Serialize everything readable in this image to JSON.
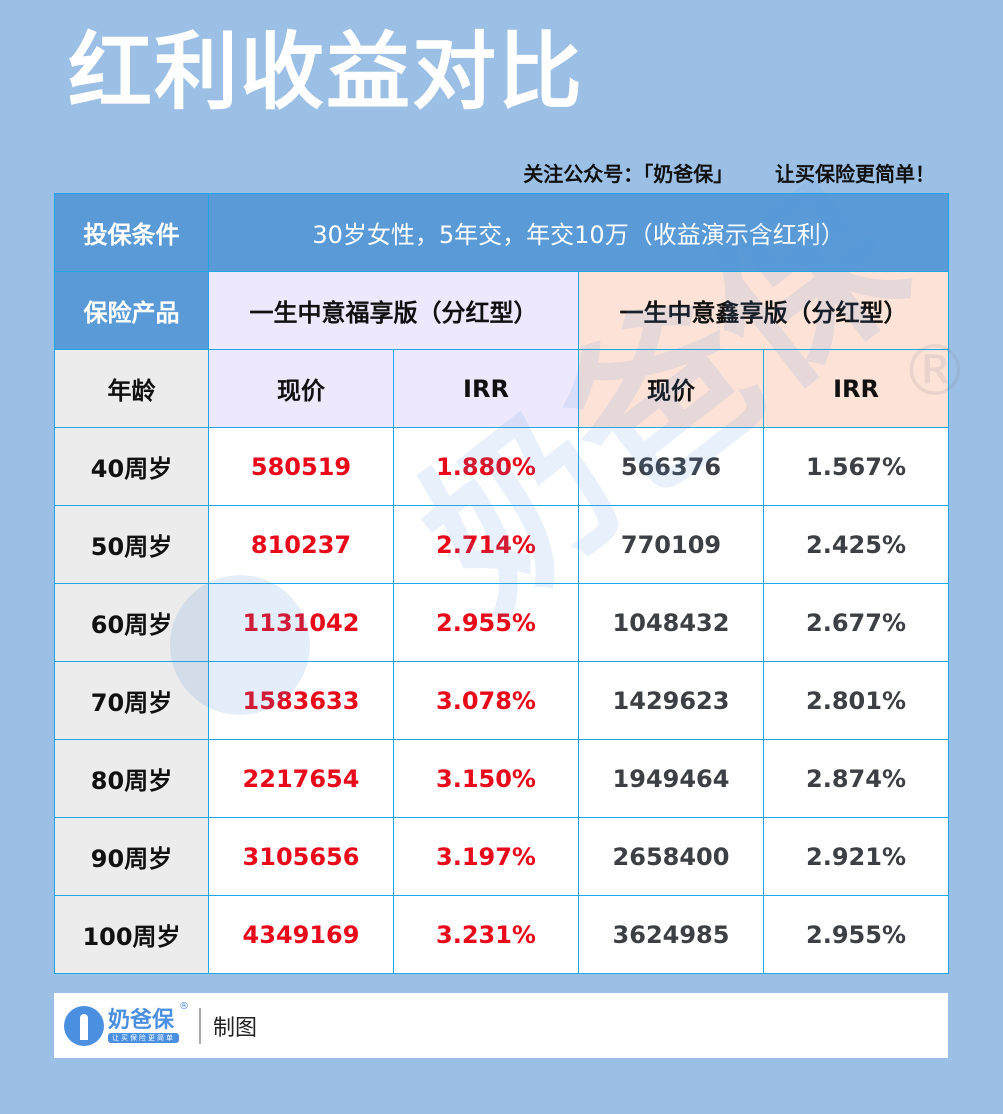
{
  "title": "红利收益对比",
  "slogan": {
    "follow": "关注公众号：「奶爸保」",
    "tagline": "让买保险更简单！"
  },
  "table": {
    "conditions_label": "投保条件",
    "conditions_value": "30岁女性，5年交，年交10万（收益演示含红利）",
    "product_label": "保险产品",
    "products": [
      {
        "name": "一生中意福享版（分红型）",
        "color": "#ede8fc"
      },
      {
        "name": "一生中意鑫享版（分红型）",
        "color": "#fde3d7"
      }
    ],
    "age_header": "年龄",
    "sub_headers": [
      "现价",
      "IRR",
      "现价",
      "IRR"
    ],
    "rows": [
      {
        "age": "40周岁",
        "p1_value": "580519",
        "p1_irr": "1.880%",
        "p2_value": "566376",
        "p2_irr": "1.567%"
      },
      {
        "age": "50周岁",
        "p1_value": "810237",
        "p1_irr": "2.714%",
        "p2_value": "770109",
        "p2_irr": "2.425%"
      },
      {
        "age": "60周岁",
        "p1_value": "1131042",
        "p1_irr": "2.955%",
        "p2_value": "1048432",
        "p2_irr": "2.677%"
      },
      {
        "age": "70周岁",
        "p1_value": "1583633",
        "p1_irr": "3.078%",
        "p2_value": "1429623",
        "p2_irr": "2.801%"
      },
      {
        "age": "80周岁",
        "p1_value": "2217654",
        "p1_irr": "3.150%",
        "p2_value": "1949464",
        "p2_irr": "2.874%"
      },
      {
        "age": "90周岁",
        "p1_value": "3105656",
        "p1_irr": "3.197%",
        "p2_value": "2658400",
        "p2_irr": "2.921%"
      },
      {
        "age": "100周岁",
        "p1_value": "4349169",
        "p1_irr": "3.231%",
        "p2_value": "3624985",
        "p2_irr": "2.955%"
      }
    ]
  },
  "footer": {
    "logo_name": "奶爸保",
    "logo_reg": "®",
    "logo_tagline": "让买保险更简单",
    "made_by": "制图"
  },
  "watermark": {
    "text": "奶爸保",
    "reg": "®"
  },
  "colors": {
    "background": "#9cc0e5",
    "header_blue": "#5a9ad6",
    "highlight_red": "#e8091a",
    "text_gray": "#3c4045",
    "border": "#1ea7e4"
  }
}
